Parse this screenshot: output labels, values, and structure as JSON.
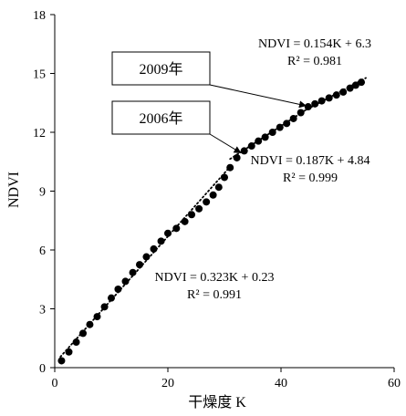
{
  "chart_data": {
    "type": "scatter",
    "xlabel": "干燥度 K",
    "ylabel": "NDVI",
    "xlim": [
      0,
      60
    ],
    "ylim": [
      0,
      18
    ],
    "xticks": [
      0,
      20,
      40,
      60
    ],
    "yticks": [
      0,
      3,
      6,
      9,
      12,
      15,
      18
    ],
    "points": [
      [
        1.2,
        0.35
      ],
      [
        2.5,
        0.8
      ],
      [
        3.8,
        1.3
      ],
      [
        5.0,
        1.75
      ],
      [
        6.2,
        2.2
      ],
      [
        7.5,
        2.6
      ],
      [
        8.8,
        3.1
      ],
      [
        10.0,
        3.55
      ],
      [
        11.2,
        4.0
      ],
      [
        12.5,
        4.4
      ],
      [
        13.8,
        4.85
      ],
      [
        15.0,
        5.25
      ],
      [
        16.2,
        5.65
      ],
      [
        17.5,
        6.05
      ],
      [
        18.8,
        6.45
      ],
      [
        20.0,
        6.85
      ],
      [
        21.5,
        7.1
      ],
      [
        23.0,
        7.45
      ],
      [
        24.2,
        7.8
      ],
      [
        25.5,
        8.1
      ],
      [
        26.8,
        8.45
      ],
      [
        28.0,
        8.8
      ],
      [
        29.0,
        9.2
      ],
      [
        30.0,
        9.7
      ],
      [
        31.0,
        10.2
      ],
      [
        32.2,
        10.7
      ],
      [
        33.5,
        11.05
      ],
      [
        34.8,
        11.3
      ],
      [
        36.0,
        11.55
      ],
      [
        37.2,
        11.75
      ],
      [
        38.5,
        12.0
      ],
      [
        39.8,
        12.25
      ],
      [
        41.0,
        12.45
      ],
      [
        42.2,
        12.7
      ],
      [
        43.5,
        13.0
      ],
      [
        44.8,
        13.3
      ],
      [
        46.0,
        13.45
      ],
      [
        47.2,
        13.6
      ],
      [
        48.5,
        13.75
      ],
      [
        49.8,
        13.9
      ],
      [
        51.0,
        14.05
      ],
      [
        52.2,
        14.25
      ],
      [
        53.2,
        14.4
      ],
      [
        54.2,
        14.55
      ]
    ],
    "trendlines": [
      {
        "equation": "NDVI = 0.323K + 0.23",
        "r2": "R² = 0.991",
        "slope": 0.323,
        "intercept": 0.23,
        "range": [
          1,
          31
        ]
      },
      {
        "equation": "NDVI = 0.187K + 4.84",
        "r2": "R² = 0.999",
        "slope": 0.187,
        "intercept": 4.84,
        "range": [
          31,
          45
        ]
      },
      {
        "equation": "NDVI = 0.154K + 6.3",
        "r2": "R² = 0.981",
        "slope": 0.154,
        "intercept": 6.3,
        "range": [
          44,
          55
        ]
      }
    ],
    "callouts": [
      {
        "label": "2009年",
        "x": 45,
        "y": 13.45
      },
      {
        "label": "2006年",
        "x": 33.5,
        "y": 11.05
      }
    ],
    "grid": false,
    "marker_color": "#000000"
  }
}
